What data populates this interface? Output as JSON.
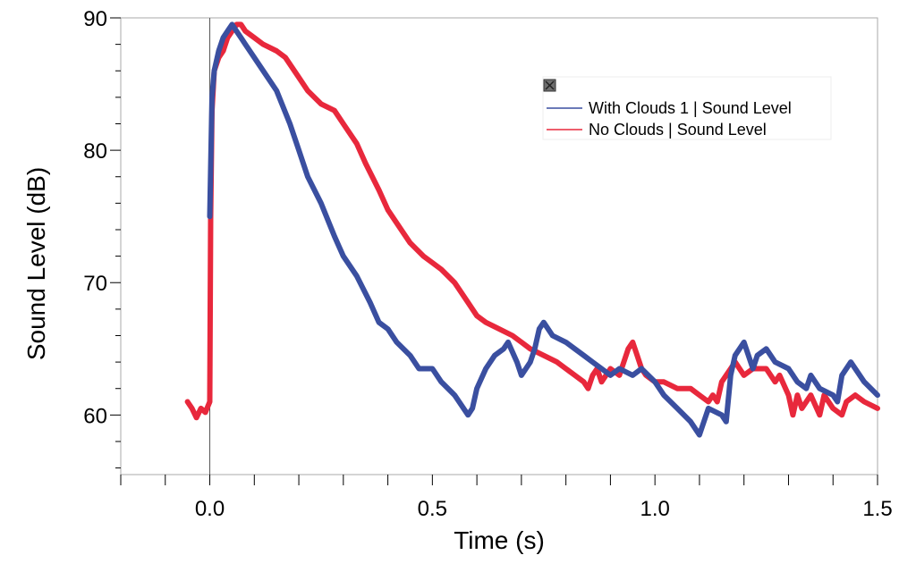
{
  "chart_data": {
    "type": "line",
    "title": "",
    "xlabel": "Time (s)",
    "ylabel": "Sound Level (dB)",
    "xlim": [
      -0.2,
      1.5
    ],
    "ylim": [
      55.5,
      90
    ],
    "x_ticks": [
      0.0,
      0.5,
      1.0,
      1.5
    ],
    "x_tick_labels": [
      "0.0",
      "0.5",
      "1.0",
      "1.5"
    ],
    "y_ticks": [
      60,
      70,
      80,
      90
    ],
    "y_tick_labels": [
      "60",
      "70",
      "80",
      "90"
    ],
    "grid": false,
    "legend_position": "top-right",
    "series": [
      {
        "name": "With Clouds 1 | Sound Level",
        "color": "#3a4fa0",
        "x": [
          0.0,
          0.005,
          0.01,
          0.02,
          0.03,
          0.04,
          0.05,
          0.06,
          0.07,
          0.08,
          0.1,
          0.12,
          0.15,
          0.18,
          0.2,
          0.22,
          0.25,
          0.28,
          0.3,
          0.33,
          0.36,
          0.38,
          0.4,
          0.42,
          0.45,
          0.47,
          0.5,
          0.52,
          0.55,
          0.58,
          0.59,
          0.6,
          0.62,
          0.64,
          0.66,
          0.67,
          0.69,
          0.7,
          0.71,
          0.72,
          0.73,
          0.74,
          0.75,
          0.77,
          0.8,
          0.82,
          0.84,
          0.86,
          0.88,
          0.9,
          0.92,
          0.95,
          0.97,
          1.0,
          1.02,
          1.05,
          1.08,
          1.1,
          1.12,
          1.15,
          1.16,
          1.17,
          1.18,
          1.2,
          1.22,
          1.23,
          1.25,
          1.27,
          1.3,
          1.32,
          1.34,
          1.35,
          1.37,
          1.4,
          1.41,
          1.42,
          1.44,
          1.47,
          1.5
        ],
        "y": [
          75.0,
          84.0,
          86.0,
          87.5,
          88.5,
          89.0,
          89.5,
          89.0,
          88.5,
          88.0,
          87.0,
          86.0,
          84.5,
          82.0,
          80.0,
          78.0,
          76.0,
          73.5,
          72.0,
          70.5,
          68.5,
          67.0,
          66.5,
          65.5,
          64.5,
          63.5,
          63.5,
          62.5,
          61.5,
          60.0,
          60.5,
          62.0,
          63.5,
          64.5,
          65.0,
          65.5,
          64.0,
          63.0,
          63.5,
          64.0,
          65.0,
          66.5,
          67.0,
          66.0,
          65.5,
          65.0,
          64.5,
          64.0,
          63.5,
          63.0,
          63.5,
          63.0,
          63.5,
          62.5,
          61.5,
          60.5,
          59.5,
          58.5,
          60.5,
          60.0,
          59.5,
          63.0,
          64.5,
          65.5,
          63.5,
          64.5,
          65.0,
          64.0,
          63.5,
          62.5,
          62.0,
          63.0,
          62.0,
          61.5,
          61.0,
          63.0,
          64.0,
          62.5,
          61.5
        ]
      },
      {
        "name": "No Clouds | Sound Level",
        "color": "#e8283c",
        "x": [
          -0.05,
          -0.04,
          -0.03,
          -0.02,
          -0.01,
          0.0,
          0.002,
          0.005,
          0.01,
          0.02,
          0.03,
          0.04,
          0.05,
          0.06,
          0.07,
          0.08,
          0.1,
          0.12,
          0.15,
          0.17,
          0.2,
          0.22,
          0.25,
          0.28,
          0.3,
          0.33,
          0.35,
          0.38,
          0.4,
          0.42,
          0.45,
          0.48,
          0.5,
          0.52,
          0.55,
          0.58,
          0.6,
          0.62,
          0.65,
          0.68,
          0.7,
          0.72,
          0.75,
          0.78,
          0.8,
          0.82,
          0.84,
          0.85,
          0.86,
          0.87,
          0.88,
          0.9,
          0.92,
          0.94,
          0.95,
          0.96,
          0.97,
          0.98,
          1.0,
          1.02,
          1.05,
          1.08,
          1.1,
          1.12,
          1.13,
          1.14,
          1.15,
          1.16,
          1.17,
          1.18,
          1.2,
          1.22,
          1.23,
          1.25,
          1.27,
          1.28,
          1.3,
          1.31,
          1.32,
          1.33,
          1.35,
          1.37,
          1.38,
          1.4,
          1.42,
          1.43,
          1.45,
          1.47,
          1.5
        ],
        "y": [
          61.0,
          60.5,
          59.8,
          60.5,
          60.2,
          61.0,
          75.0,
          83.0,
          86.0,
          87.0,
          87.5,
          88.5,
          89.0,
          89.5,
          89.5,
          89.0,
          88.5,
          88.0,
          87.5,
          87.0,
          85.5,
          84.5,
          83.5,
          83.0,
          82.0,
          80.5,
          79.0,
          77.0,
          75.5,
          74.5,
          73.0,
          72.0,
          71.5,
          71.0,
          70.0,
          68.5,
          67.5,
          67.0,
          66.5,
          66.0,
          65.5,
          65.0,
          64.5,
          64.0,
          63.5,
          63.0,
          62.5,
          62.0,
          63.0,
          63.5,
          62.5,
          63.5,
          63.0,
          65.0,
          65.5,
          64.5,
          63.5,
          63.0,
          62.5,
          62.5,
          62.0,
          62.0,
          61.5,
          61.0,
          61.5,
          61.0,
          62.5,
          63.0,
          63.5,
          64.0,
          63.0,
          63.5,
          63.5,
          63.5,
          62.5,
          63.0,
          61.5,
          60.0,
          61.5,
          60.5,
          61.5,
          60.0,
          61.5,
          60.5,
          60.0,
          61.0,
          61.5,
          61.0,
          60.5
        ]
      }
    ]
  }
}
